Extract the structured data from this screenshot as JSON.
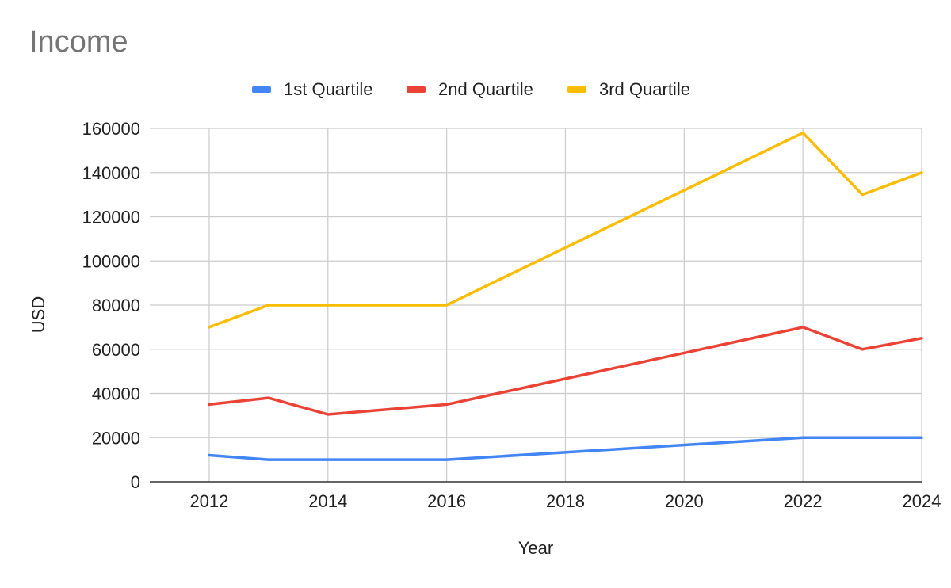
{
  "chart_data": {
    "type": "line",
    "title": "Income",
    "xlabel": "Year",
    "ylabel": "USD",
    "x": [
      2012,
      2013,
      2014,
      2016,
      2022,
      2023,
      2024
    ],
    "xlim": [
      2011,
      2024
    ],
    "ylim": [
      0,
      160000
    ],
    "x_ticks": [
      2012,
      2014,
      2016,
      2018,
      2020,
      2022,
      2024
    ],
    "y_ticks": [
      0,
      20000,
      40000,
      60000,
      80000,
      100000,
      120000,
      140000,
      160000
    ],
    "grid": true,
    "legend_position": "top",
    "series": [
      {
        "name": "1st Quartile",
        "color": "#4285f4",
        "values": [
          12000,
          10000,
          10000,
          10000,
          20000,
          20000,
          20000
        ]
      },
      {
        "name": "2nd Quartile",
        "color": "#ea4335",
        "values": [
          35000,
          38000,
          30500,
          35000,
          70000,
          60000,
          65000
        ]
      },
      {
        "name": "3rd Quartile",
        "color": "#fbbc04",
        "values": [
          70000,
          80000,
          80000,
          80000,
          158000,
          130000,
          140000
        ]
      }
    ]
  }
}
